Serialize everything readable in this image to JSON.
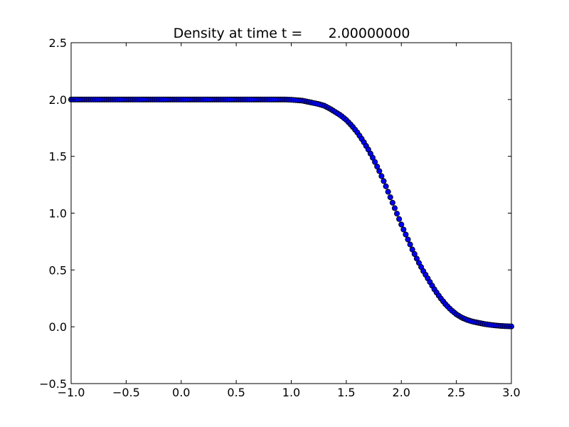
{
  "chart_data": {
    "type": "scatter",
    "title": "Density at time t =      2.00000000",
    "xlabel": "",
    "ylabel": "",
    "xlim": [
      -1.0,
      3.0
    ],
    "ylim": [
      -0.5,
      2.5
    ],
    "x_ticks": [
      -1.0,
      -0.5,
      0.0,
      0.5,
      1.0,
      1.5,
      2.0,
      2.5,
      3.0
    ],
    "x_tick_labels": [
      "−1.0",
      "−0.5",
      "0.0",
      "0.5",
      "1.0",
      "1.5",
      "2.0",
      "2.5",
      "3.0"
    ],
    "y_ticks": [
      -0.5,
      0.0,
      0.5,
      1.0,
      1.5,
      2.0,
      2.5
    ],
    "y_tick_labels": [
      "−0.5",
      "0.0",
      "0.5",
      "1.0",
      "1.5",
      "2.0",
      "2.5"
    ],
    "grid": false,
    "marker_color": "#0000ff",
    "marker_edge_color": "#000000",
    "series": [
      {
        "x": [
          -1.0,
          -0.9,
          -0.8,
          -0.7,
          -0.6,
          -0.5,
          -0.4,
          -0.3,
          -0.2,
          -0.1,
          0.0,
          0.1,
          0.2,
          0.3,
          0.4,
          0.5,
          0.6,
          0.7,
          0.8,
          0.9,
          0.95,
          1.0,
          1.05,
          1.1,
          1.15,
          1.2,
          1.25,
          1.3,
          1.35,
          1.4,
          1.45,
          1.5,
          1.55,
          1.6,
          1.65,
          1.7,
          1.75,
          1.8,
          1.85,
          1.9,
          1.95,
          2.0,
          2.05,
          2.1,
          2.15,
          2.2,
          2.25,
          2.3,
          2.35,
          2.4,
          2.45,
          2.5,
          2.55,
          2.6,
          2.65,
          2.7,
          2.75,
          2.8,
          2.85,
          2.9,
          2.95,
          3.0
        ],
        "y": [
          2.0,
          2.0,
          2.0,
          2.0,
          2.0,
          2.0,
          2.0,
          2.0,
          2.0,
          2.0,
          2.0,
          2.0,
          2.0,
          2.0,
          2.0,
          2.0,
          2.0,
          2.0,
          2.0,
          2.0,
          2.0,
          1.998,
          1.994,
          1.99,
          1.98,
          1.97,
          1.96,
          1.945,
          1.92,
          1.89,
          1.86,
          1.82,
          1.77,
          1.71,
          1.64,
          1.56,
          1.47,
          1.37,
          1.26,
          1.14,
          1.02,
          0.9,
          0.79,
          0.68,
          0.58,
          0.49,
          0.41,
          0.33,
          0.26,
          0.2,
          0.15,
          0.11,
          0.08,
          0.06,
          0.045,
          0.035,
          0.025,
          0.018,
          0.012,
          0.008,
          0.005,
          0.003
        ]
      }
    ]
  }
}
